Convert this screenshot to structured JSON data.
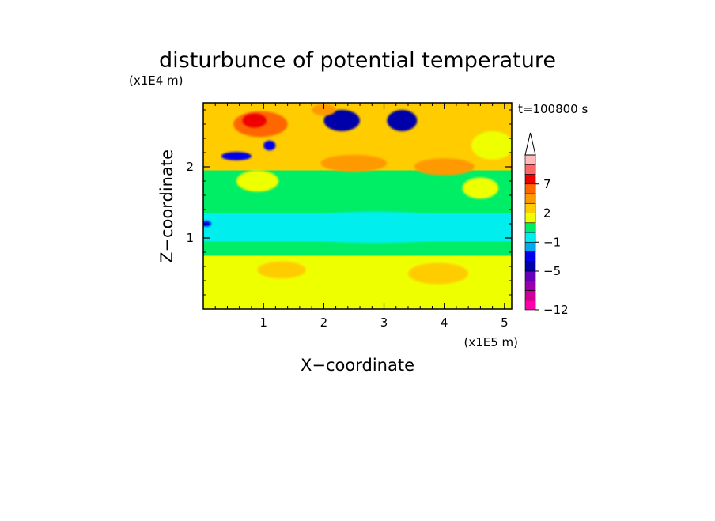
{
  "chart_data": {
    "type": "heatmap",
    "title": "disturbunce of potential temperature",
    "xlabel": "X−coordinate",
    "ylabel": "Z−coordinate",
    "x_unit": "(x1E5 m)",
    "y_unit": "(x1E4 m)",
    "time_label": "t=100800 s",
    "xlim": [
      0,
      5.12
    ],
    "ylim": [
      0,
      2.9
    ],
    "x_ticks": [
      {
        "value": 1,
        "label": "1"
      },
      {
        "value": 2,
        "label": "2"
      },
      {
        "value": 3,
        "label": "3"
      },
      {
        "value": 4,
        "label": "4"
      },
      {
        "value": 5,
        "label": "5"
      }
    ],
    "y_ticks": [
      {
        "value": 1,
        "label": "1"
      },
      {
        "value": 2,
        "label": "2"
      }
    ],
    "colorbar": {
      "levels": [
        {
          "color": "#ff00aa"
        },
        {
          "color": "#cc0099"
        },
        {
          "color": "#9900aa"
        },
        {
          "color": "#6600bb"
        },
        {
          "color": "#0000aa"
        },
        {
          "color": "#0000ee"
        },
        {
          "color": "#00aaee"
        },
        {
          "color": "#00eeee"
        },
        {
          "color": "#00ee66"
        },
        {
          "color": "#eeff00"
        },
        {
          "color": "#ffcc00"
        },
        {
          "color": "#ff9900"
        },
        {
          "color": "#ff6600"
        },
        {
          "color": "#ee0000"
        },
        {
          "color": "#ff6666"
        },
        {
          "color": "#ffbbbb"
        }
      ],
      "tick_labels": [
        {
          "level_index": 0,
          "label": "−12"
        },
        {
          "level_index": 4,
          "label": "−5"
        },
        {
          "level_index": 7,
          "label": "−1"
        },
        {
          "level_index": 10,
          "label": "2"
        },
        {
          "level_index": 13,
          "label": "7"
        }
      ],
      "arrow_color": "#ffffff"
    },
    "bands": [
      {
        "z_range": [
          0.0,
          0.75
        ],
        "level_index": 9,
        "description": "yellow"
      },
      {
        "z_range": [
          0.75,
          0.95
        ],
        "level_index": 8,
        "description": "green"
      },
      {
        "z_range": [
          0.95,
          1.35
        ],
        "level_index": 7,
        "description": "cyan"
      },
      {
        "z_range": [
          1.35,
          1.95
        ],
        "level_index": 8,
        "description": "green"
      },
      {
        "z_range": [
          1.95,
          2.9
        ],
        "level_index": 10,
        "description": "orange-yellow mix"
      }
    ],
    "blobs": [
      {
        "x": 0.95,
        "z": 2.6,
        "rx": 0.45,
        "rz": 0.18,
        "level_index": 12
      },
      {
        "x": 0.85,
        "z": 2.65,
        "rx": 0.2,
        "rz": 0.1,
        "level_index": 13
      },
      {
        "x": 2.3,
        "z": 2.65,
        "rx": 0.3,
        "rz": 0.15,
        "level_index": 4
      },
      {
        "x": 3.3,
        "z": 2.65,
        "rx": 0.25,
        "rz": 0.15,
        "level_index": 4
      },
      {
        "x": 0.55,
        "z": 2.15,
        "rx": 0.25,
        "rz": 0.06,
        "level_index": 5
      },
      {
        "x": 1.1,
        "z": 2.3,
        "rx": 0.1,
        "rz": 0.07,
        "level_index": 5
      },
      {
        "x": 2.5,
        "z": 2.05,
        "rx": 0.55,
        "rz": 0.12,
        "level_index": 11
      },
      {
        "x": 4.0,
        "z": 2.0,
        "rx": 0.5,
        "rz": 0.12,
        "level_index": 11
      },
      {
        "x": 2.85,
        "z": 1.15,
        "rx": 1.6,
        "rz": 0.22,
        "level_index": 7
      },
      {
        "x": 0.9,
        "z": 1.8,
        "rx": 0.35,
        "rz": 0.15,
        "level_index": 9
      },
      {
        "x": 4.6,
        "z": 1.7,
        "rx": 0.3,
        "rz": 0.15,
        "level_index": 9
      },
      {
        "x": 3.9,
        "z": 0.5,
        "rx": 0.5,
        "rz": 0.15,
        "level_index": 10
      },
      {
        "x": 1.3,
        "z": 0.55,
        "rx": 0.4,
        "rz": 0.12,
        "level_index": 10
      },
      {
        "x": 0.05,
        "z": 1.2,
        "rx": 0.08,
        "rz": 0.04,
        "level_index": 5
      },
      {
        "x": 4.8,
        "z": 2.3,
        "rx": 0.35,
        "rz": 0.2,
        "level_index": 9
      },
      {
        "x": 2.0,
        "z": 2.8,
        "rx": 0.2,
        "rz": 0.08,
        "level_index": 11
      }
    ]
  }
}
